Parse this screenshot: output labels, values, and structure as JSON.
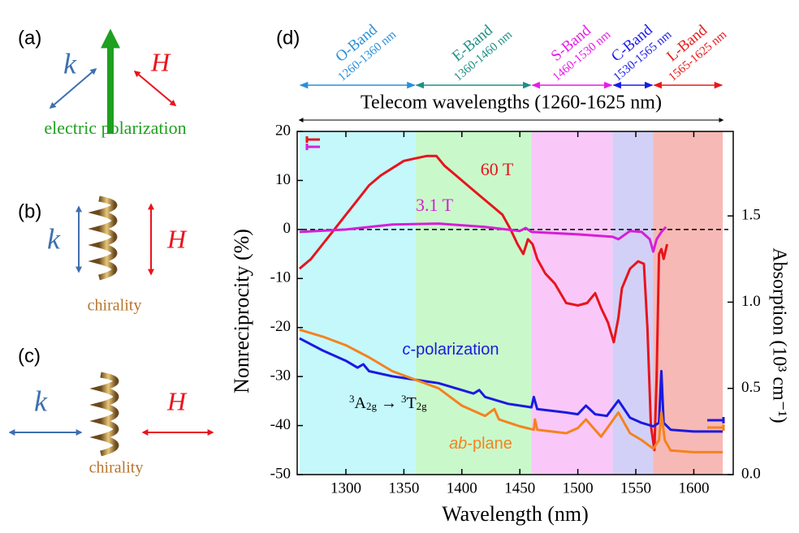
{
  "panels": {
    "a": {
      "label": "(a)",
      "k": "k",
      "h": "H",
      "caption": "electric polarization"
    },
    "b": {
      "label": "(b)",
      "k": "k",
      "h": "H",
      "caption": "chirality"
    },
    "c": {
      "label": "(c)",
      "k": "k",
      "h": "H",
      "caption": "chirality"
    }
  },
  "chart_data": {
    "type": "line",
    "panel_label": "(d)",
    "x_label": "Wavelength (nm)",
    "y_label": "Nonreciprocity (%)",
    "y2_label": "Absorption (10³ cm⁻¹)",
    "xlim": [
      1258,
      1634
    ],
    "xticks": [
      1300,
      1350,
      1400,
      1450,
      1500,
      1550,
      1600
    ],
    "ylim": [
      -50,
      20
    ],
    "yticks": [
      -50,
      -40,
      -30,
      -20,
      -10,
      0,
      10,
      20
    ],
    "y2lim": [
      0,
      1.99
    ],
    "y2ticks": [
      {
        "value": 0,
        "label": "0.0"
      },
      0.5,
      {
        "value": 1,
        "label": "1.0"
      },
      1.5
    ],
    "hline": 0,
    "bands": [
      {
        "name": "O-Band",
        "range_label": "1260-1360 nm",
        "range": [
          1260,
          1360
        ],
        "color": "#2a8fd8",
        "shade": "#c4f8fb"
      },
      {
        "name": "E-Band",
        "range_label": "1360-1460 nm",
        "range": [
          1360,
          1460
        ],
        "color": "#1f8f86",
        "shade": "#c9f9cb"
      },
      {
        "name": "S-Band",
        "range_label": "1460-1530 nm",
        "range": [
          1460,
          1530
        ],
        "color": "#e61ce6",
        "shade": "#f9c8f9"
      },
      {
        "name": "C-Band",
        "range_label": "1530-1565 nm",
        "range": [
          1530,
          1565
        ],
        "color": "#1a1ae6",
        "shade": "#d3d0f7"
      },
      {
        "name": "L-Band",
        "range_label": "1565-1625 nm",
        "range": [
          1565,
          1625
        ],
        "color": "#e61a1a",
        "shade": "#f7b9b5"
      }
    ],
    "telecom": {
      "label": "Telecom wavelengths (1260-1625 nm)",
      "range": [
        1260,
        1625
      ]
    },
    "transition": {
      "parts": [
        "3",
        "A",
        "2g",
        " → ",
        "3",
        "T",
        "2g"
      ]
    },
    "series": [
      {
        "name": "60 T",
        "color": "#e8141c",
        "axis": "y",
        "x": [
          1260,
          1270,
          1280,
          1290,
          1300,
          1310,
          1320,
          1330,
          1340,
          1350,
          1360,
          1370,
          1378,
          1385,
          1395,
          1405,
          1415,
          1425,
          1435,
          1442,
          1448,
          1453,
          1457,
          1461,
          1465,
          1472,
          1480,
          1490,
          1500,
          1508,
          1515,
          1520,
          1526,
          1531,
          1535,
          1538,
          1545,
          1552,
          1557,
          1560,
          1563,
          1566,
          1568,
          1570,
          1572,
          1574,
          1577
        ],
        "values": [
          -8,
          -6,
          -3,
          0,
          3,
          6,
          9,
          11,
          12.5,
          14,
          14.5,
          15,
          15,
          13,
          11,
          9,
          7,
          5,
          3,
          0,
          -3,
          -5,
          -2,
          -3,
          -6,
          -9,
          -11,
          -15,
          -15.5,
          -15,
          -13,
          -16,
          -19,
          -23,
          -18,
          -12,
          -8,
          -6.5,
          -7,
          -20,
          -40,
          -45,
          -30,
          -5,
          -4,
          -6,
          -3
        ]
      },
      {
        "name": "3.1 T",
        "color": "#d61ed6",
        "axis": "y",
        "x": [
          1260,
          1300,
          1340,
          1380,
          1420,
          1450,
          1455,
          1460,
          1500,
          1530,
          1535,
          1545,
          1555,
          1562,
          1565,
          1568,
          1572,
          1576
        ],
        "values": [
          -0.5,
          0,
          1,
          1.2,
          0.5,
          -0.3,
          0.3,
          -0.5,
          -1,
          -1.5,
          -2,
          -0.3,
          -0.5,
          -2,
          -4.5,
          -2,
          -0.5,
          0.5
        ]
      },
      {
        "name": "c-polarization",
        "color": "#1a1ae0",
        "axis": "y2",
        "x": [
          1260,
          1280,
          1300,
          1310,
          1315,
          1320,
          1340,
          1360,
          1380,
          1400,
          1410,
          1415,
          1420,
          1440,
          1460,
          1462,
          1465,
          1490,
          1500,
          1507,
          1515,
          1525,
          1535,
          1545,
          1555,
          1565,
          1570,
          1572,
          1574,
          1580,
          1600,
          1625
        ],
        "values": [
          0.79,
          0.72,
          0.66,
          0.62,
          0.64,
          0.6,
          0.57,
          0.55,
          0.53,
          0.49,
          0.47,
          0.49,
          0.45,
          0.41,
          0.39,
          0.45,
          0.38,
          0.36,
          0.35,
          0.4,
          0.35,
          0.34,
          0.43,
          0.33,
          0.3,
          0.28,
          0.3,
          0.6,
          0.3,
          0.26,
          0.25,
          0.25
        ]
      },
      {
        "name": "ab-plane",
        "color": "#f5821f",
        "axis": "y2",
        "x": [
          1260,
          1280,
          1300,
          1320,
          1340,
          1360,
          1380,
          1400,
          1410,
          1420,
          1428,
          1432,
          1450,
          1462,
          1463,
          1465,
          1490,
          1500,
          1507,
          1520,
          1535,
          1545,
          1555,
          1565,
          1570,
          1572,
          1575,
          1580,
          1600,
          1625
        ],
        "values": [
          0.84,
          0.8,
          0.75,
          0.68,
          0.6,
          0.55,
          0.5,
          0.4,
          0.37,
          0.34,
          0.38,
          0.32,
          0.28,
          0.26,
          0.32,
          0.26,
          0.24,
          0.27,
          0.32,
          0.22,
          0.36,
          0.24,
          0.2,
          0.15,
          0.2,
          0.36,
          0.2,
          0.14,
          0.13,
          0.13
        ]
      }
    ]
  }
}
